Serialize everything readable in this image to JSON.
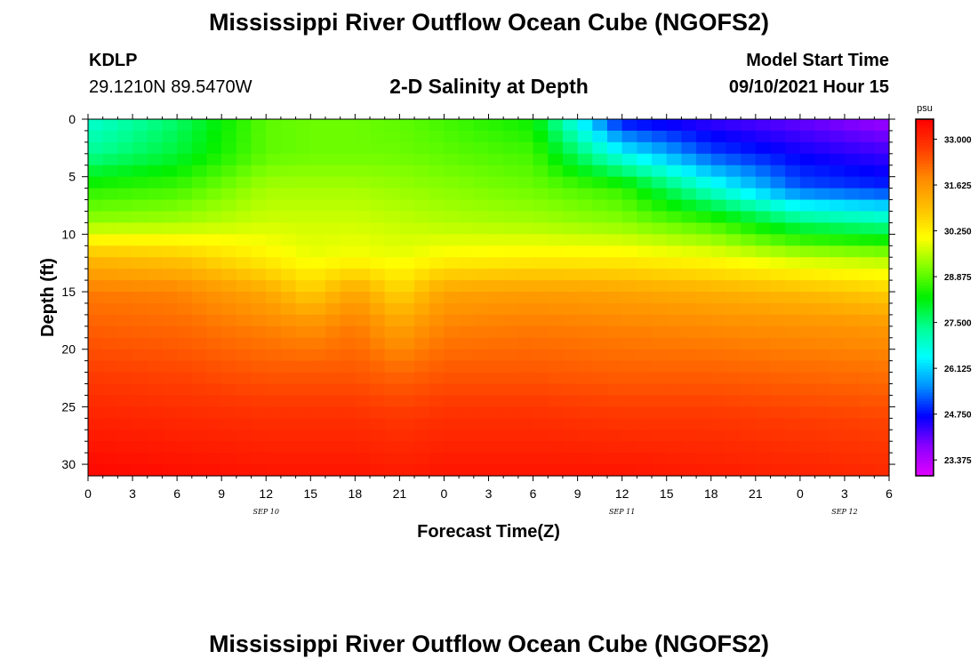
{
  "header": {
    "title": "Mississippi River Outflow Ocean Cube (NGOFS2)",
    "station": "KDLP",
    "coords": "29.1210N  89.5470W",
    "subtitle": "2-D Salinity at Depth",
    "model_start_label": "Model Start Time",
    "model_start_time": "09/10/2021 Hour 15"
  },
  "footer": {
    "title": "Mississippi River Outflow Ocean Cube (NGOFS2)"
  },
  "chart_data": {
    "type": "heatmap",
    "title": "2-D Salinity at Depth",
    "xlabel": "Forecast Time(Z)",
    "ylabel": "Depth (ft)",
    "x_hours_range": [
      0,
      54
    ],
    "ylim": [
      0,
      31
    ],
    "y_reversed": true,
    "x_tick_labels": [
      "0",
      "3",
      "6",
      "9",
      "12",
      "15",
      "18",
      "21",
      "0",
      "3",
      "6",
      "9",
      "12",
      "15",
      "18",
      "21",
      "0",
      "3",
      "6"
    ],
    "y_ticks": [
      0,
      5,
      10,
      15,
      20,
      25,
      30
    ],
    "date_labels": [
      {
        "text": "SEP 10",
        "hour": 12
      },
      {
        "text": "SEP 11",
        "hour": 36
      },
      {
        "text": "SEP 12",
        "hour": 51
      }
    ],
    "colorbar": {
      "unit": "psu",
      "min": 22.9,
      "max": 33.6,
      "labels": [
        "33.000",
        "31.625",
        "30.250",
        "28.875",
        "27.500",
        "26.125",
        "24.750",
        "23.375"
      ],
      "colors": [
        "#e000ff",
        "#8a00ff",
        "#0000ff",
        "#0090ff",
        "#00ffff",
        "#00ff90",
        "#00f000",
        "#80ff00",
        "#ffff00",
        "#ffc000",
        "#ff8a00",
        "#ff3c00",
        "#ff0000"
      ]
    },
    "salinity_grid": {
      "hours": [
        0,
        6,
        12,
        15,
        18,
        21,
        24,
        30,
        36,
        42,
        48,
        54
      ],
      "depths": [
        0,
        3,
        6,
        9,
        12,
        15,
        18,
        22,
        26,
        31
      ],
      "values": [
        [
          26.8,
          27.6,
          28.9,
          29.0,
          29.0,
          28.9,
          28.7,
          28.3,
          24.6,
          24.3,
          24.0,
          23.6
        ],
        [
          27.3,
          27.9,
          28.9,
          29.0,
          29.0,
          29.0,
          28.9,
          28.7,
          26.5,
          25.1,
          24.6,
          24.3
        ],
        [
          28.5,
          28.7,
          29.4,
          29.4,
          29.4,
          29.3,
          29.2,
          29.0,
          28.6,
          26.8,
          25.2,
          24.9
        ],
        [
          29.3,
          29.4,
          29.7,
          29.7,
          29.7,
          29.6,
          29.5,
          29.4,
          29.2,
          28.7,
          27.6,
          27.2
        ],
        [
          31.0,
          30.8,
          30.2,
          29.9,
          30.0,
          29.9,
          30.1,
          30.2,
          30.2,
          30.0,
          29.6,
          29.4
        ],
        [
          32.0,
          31.9,
          31.3,
          30.7,
          31.4,
          30.6,
          31.4,
          31.5,
          31.4,
          31.2,
          31.0,
          30.7
        ],
        [
          32.3,
          32.2,
          31.9,
          31.7,
          32.0,
          31.4,
          31.9,
          32.0,
          31.9,
          31.8,
          31.7,
          31.6
        ],
        [
          32.7,
          32.6,
          32.4,
          32.4,
          32.4,
          32.2,
          32.4,
          32.4,
          32.3,
          32.3,
          32.2,
          32.1
        ],
        [
          33.1,
          33.0,
          32.9,
          32.9,
          32.9,
          32.8,
          32.9,
          32.9,
          32.8,
          32.8,
          32.7,
          32.6
        ],
        [
          33.5,
          33.4,
          33.3,
          33.3,
          33.3,
          33.2,
          33.3,
          33.3,
          33.3,
          33.2,
          33.1,
          33.0
        ]
      ]
    }
  }
}
